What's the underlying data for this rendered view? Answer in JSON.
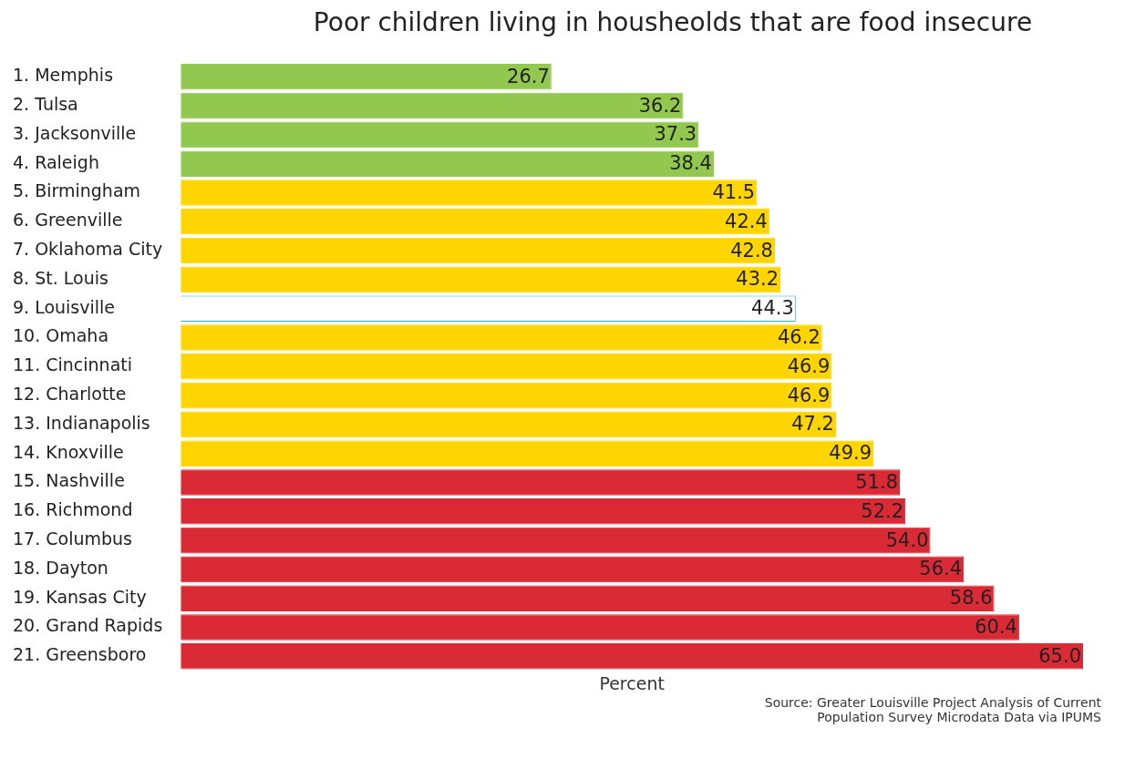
{
  "chart_data": {
    "type": "bar",
    "orientation": "horizontal",
    "title": "Poor children living in housheolds that are food insecure",
    "xlabel": "Percent",
    "categories": [
      "1. Memphis",
      "2. Tulsa",
      "3. Jacksonville",
      "4. Raleigh",
      "5. Birmingham",
      "6. Greenville",
      "7. Oklahoma City",
      "8. St. Louis",
      "9. Louisville",
      "10. Omaha",
      "11. Cincinnati",
      "12. Charlotte",
      "13. Indianapolis",
      "14. Knoxville",
      "15. Nashville",
      "16. Richmond",
      "17. Columbus",
      "18. Dayton",
      "19. Kansas City",
      "20. Grand Rapids",
      "21. Greensboro"
    ],
    "values": [
      26.7,
      36.2,
      37.3,
      38.4,
      41.5,
      42.4,
      42.8,
      43.2,
      44.3,
      46.2,
      46.9,
      46.9,
      47.2,
      49.9,
      51.8,
      52.2,
      54.0,
      56.4,
      58.6,
      60.4,
      65.0
    ],
    "colors": [
      "#92c84f",
      "#92c84f",
      "#92c84f",
      "#92c84f",
      "#fed500",
      "#fed500",
      "#fed500",
      "#fed500",
      "#ffffff",
      "#fed500",
      "#fed500",
      "#fed500",
      "#fed500",
      "#fed500",
      "#da2a36",
      "#da2a36",
      "#da2a36",
      "#da2a36",
      "#da2a36",
      "#da2a36",
      "#da2a36"
    ],
    "value_labels": [
      "26.7",
      "36.2",
      "37.3",
      "38.4",
      "41.5",
      "42.4",
      "42.8",
      "43.2",
      "44.3",
      "46.2",
      "46.9",
      "46.9",
      "47.2",
      "49.9",
      "51.8",
      "52.2",
      "54.0",
      "56.4",
      "58.6",
      "60.4",
      "65.0"
    ],
    "xlim": [
      0,
      65
    ],
    "tick_labels": "y",
    "legend": false,
    "annotations": [
      "Source: Greater Louisville Project Analysis of Current Population Survey Microdata Data via IPUMS"
    ]
  }
}
